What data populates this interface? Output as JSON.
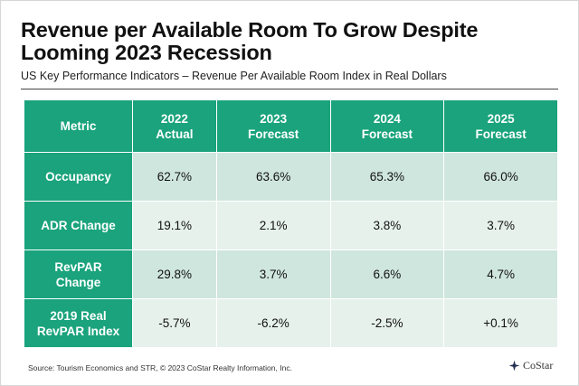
{
  "title": "Revenue per Available Room To Grow Despite Looming 2023 Recession",
  "subtitle": "US Key Performance Indicators – Revenue Per Available Room Index in Real Dollars",
  "table": {
    "headers": [
      [
        "Metric"
      ],
      [
        "2022",
        "Actual"
      ],
      [
        "2023",
        "Forecast"
      ],
      [
        "2024",
        "Forecast"
      ],
      [
        "2025",
        "Forecast"
      ]
    ],
    "rows": [
      {
        "metric": [
          "Occupancy"
        ],
        "values": [
          "62.7%",
          "63.6%",
          "65.3%",
          "66.0%"
        ]
      },
      {
        "metric": [
          "ADR Change"
        ],
        "values": [
          "19.1%",
          "2.1%",
          "3.8%",
          "3.7%"
        ]
      },
      {
        "metric": [
          "RevPAR",
          "Change"
        ],
        "values": [
          "29.8%",
          "3.7%",
          "6.6%",
          "4.7%"
        ]
      },
      {
        "metric": [
          "2019 Real",
          "RevPAR Index"
        ],
        "values": [
          "-5.7%",
          "-6.2%",
          "-2.5%",
          "+0.1%"
        ]
      }
    ]
  },
  "source": "Source: Tourism Economics and STR, © 2023 CoStar Realty Information, Inc.",
  "logo": {
    "text": "CoStar",
    "icon": "costar-logo-icon"
  },
  "colors": {
    "header": "#1aa37c",
    "row_dark": "#cfe6de",
    "row_light": "#e6f1ec"
  }
}
